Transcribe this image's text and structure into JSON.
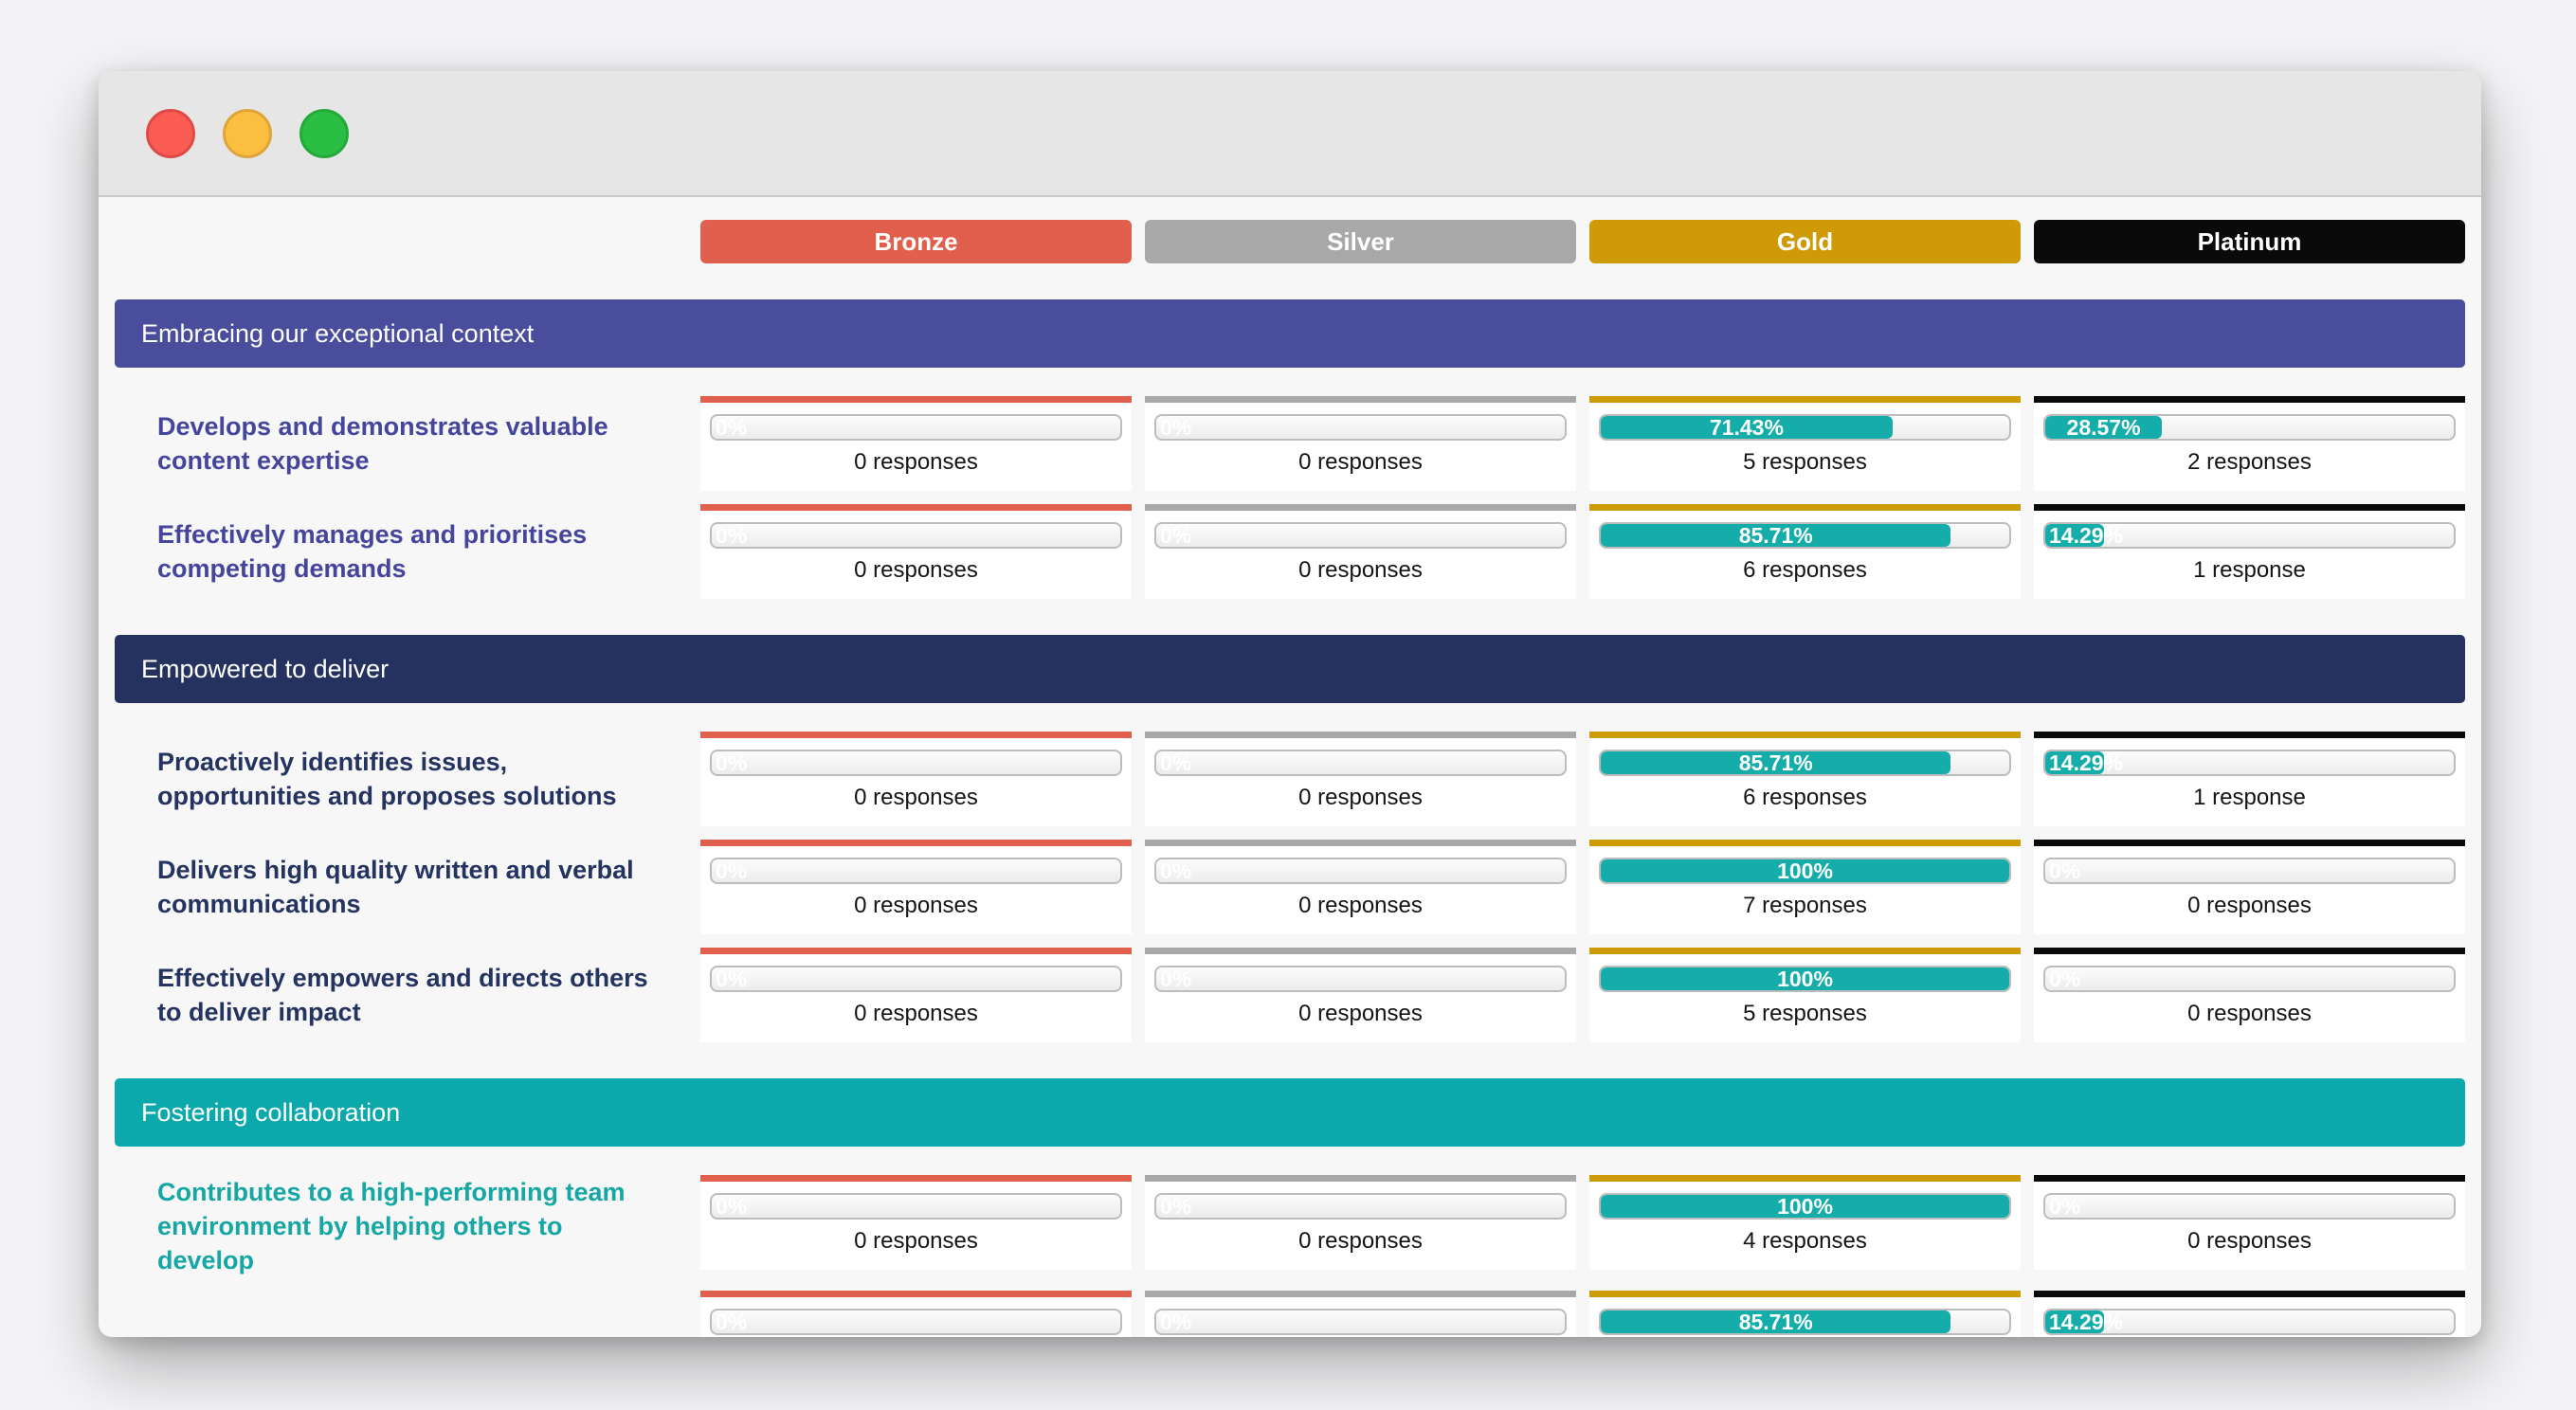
{
  "titlebar": {
    "buttons": [
      {
        "name": "close",
        "color": "#FA5B52",
        "border": "#DF4A46"
      },
      {
        "name": "minimize",
        "color": "#FBBE3F",
        "border": "#DFA43A"
      },
      {
        "name": "zoom",
        "color": "#2BBE44",
        "border": "#23A83A"
      }
    ]
  },
  "tier_headers": [
    {
      "label": "Bronze",
      "color": "#E0604D"
    },
    {
      "label": "Silver",
      "color": "#A8A8A8"
    },
    {
      "label": "Gold",
      "color": "#CE9A06"
    },
    {
      "label": "Platinum",
      "color": "#0A0A0A"
    }
  ],
  "progress": {
    "fill_color": "#14ADA9",
    "zero_label": "0%"
  },
  "sections": [
    {
      "title": "Embracing our exceptional context",
      "bar_color": "#4A4C9C",
      "label_color": "#44459B",
      "rows": [
        {
          "label": "Develops and demonstrates valuable content expertise",
          "cells": [
            {
              "pct_label": "0%",
              "pct": 0,
              "responses": "0 responses"
            },
            {
              "pct_label": "0%",
              "pct": 0,
              "responses": "0 responses"
            },
            {
              "pct_label": "71.43%",
              "pct": 71.43,
              "responses": "5 responses"
            },
            {
              "pct_label": "28.57%",
              "pct": 28.57,
              "responses": "2 responses"
            }
          ]
        },
        {
          "label": "Effectively manages and prioritises competing demands",
          "cells": [
            {
              "pct_label": "0%",
              "pct": 0,
              "responses": "0 responses"
            },
            {
              "pct_label": "0%",
              "pct": 0,
              "responses": "0 responses"
            },
            {
              "pct_label": "85.71%",
              "pct": 85.71,
              "responses": "6 responses"
            },
            {
              "pct_label": "14.29%",
              "pct": 14.29,
              "responses": "1 response"
            }
          ]
        }
      ]
    },
    {
      "title": "Empowered to deliver",
      "bar_color": "#253260",
      "label_color": "#24335F",
      "rows": [
        {
          "label": "Proactively identifies issues, opportunities and proposes solutions",
          "cells": [
            {
              "pct_label": "0%",
              "pct": 0,
              "responses": "0 responses"
            },
            {
              "pct_label": "0%",
              "pct": 0,
              "responses": "0 responses"
            },
            {
              "pct_label": "85.71%",
              "pct": 85.71,
              "responses": "6 responses"
            },
            {
              "pct_label": "14.29%",
              "pct": 14.29,
              "responses": "1 response"
            }
          ]
        },
        {
          "label": "Delivers high quality written and verbal communications",
          "cells": [
            {
              "pct_label": "0%",
              "pct": 0,
              "responses": "0 responses"
            },
            {
              "pct_label": "0%",
              "pct": 0,
              "responses": "0 responses"
            },
            {
              "pct_label": "100%",
              "pct": 100,
              "responses": "7 responses"
            },
            {
              "pct_label": "0%",
              "pct": 0,
              "responses": "0 responses"
            }
          ]
        },
        {
          "label": "Effectively empowers and directs others to deliver impact",
          "cells": [
            {
              "pct_label": "0%",
              "pct": 0,
              "responses": "0 responses"
            },
            {
              "pct_label": "0%",
              "pct": 0,
              "responses": "0 responses"
            },
            {
              "pct_label": "100%",
              "pct": 100,
              "responses": "5 responses"
            },
            {
              "pct_label": "0%",
              "pct": 0,
              "responses": "0 responses"
            }
          ]
        }
      ]
    },
    {
      "title": "Fostering collaboration",
      "bar_color": "#0CA9AC",
      "label_color": "#16A6A3",
      "rows": [
        {
          "label": "Contributes to a high-performing team environment by helping others to develop",
          "cells": [
            {
              "pct_label": "0%",
              "pct": 0,
              "responses": "0 responses"
            },
            {
              "pct_label": "0%",
              "pct": 0,
              "responses": "0 responses"
            },
            {
              "pct_label": "100%",
              "pct": 100,
              "responses": "4 responses"
            },
            {
              "pct_label": "0%",
              "pct": 0,
              "responses": "0 responses"
            }
          ]
        },
        {
          "label": "",
          "cells": [
            {
              "pct_label": "0%",
              "pct": 0,
              "responses": ""
            },
            {
              "pct_label": "0%",
              "pct": 0,
              "responses": ""
            },
            {
              "pct_label": "85.71%",
              "pct": 85.71,
              "responses": ""
            },
            {
              "pct_label": "14.29%",
              "pct": 14.29,
              "responses": ""
            }
          ]
        }
      ]
    }
  ]
}
